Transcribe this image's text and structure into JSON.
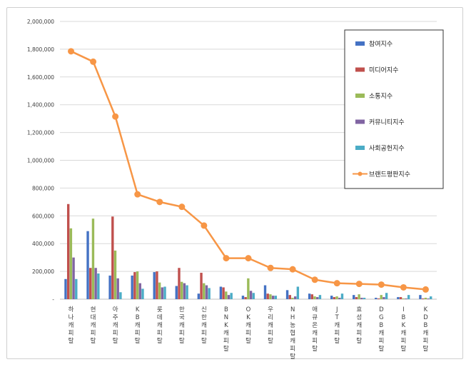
{
  "chart_data": {
    "type": "bar",
    "title": "",
    "xlabel": "",
    "ylabel": "",
    "ylim": [
      0,
      2000000
    ],
    "yticks": [
      0,
      200000,
      400000,
      600000,
      800000,
      1000000,
      1200000,
      1400000,
      1600000,
      1800000,
      2000000
    ],
    "ytick_labels": [
      "-",
      "200,000",
      "400,000",
      "600,000",
      "800,000",
      "1,000,000",
      "1,200,000",
      "1,400,000",
      "1,600,000",
      "1,800,000",
      "2,000,000"
    ],
    "categories": [
      "하나캐피탈",
      "현대캐피탈",
      "아주캐피탈",
      "KB캐피탈",
      "롯데캐피탈",
      "한국캐피탈",
      "신한캐피탈",
      "BNK캐피탈",
      "OK캐피탈",
      "우리캐피탈",
      "NH농협캐피탈",
      "애큐온캐피탈",
      "JT캐피탈",
      "효성캐피탈",
      "DGB캐피탈",
      "IBK캐피탈",
      "KDB캐피탈"
    ],
    "grid": true,
    "legend_position": "top-right",
    "series": [
      {
        "name": "참여지수",
        "kind": "bar",
        "color": "#4472C4",
        "values": [
          145000,
          490000,
          170000,
          170000,
          195000,
          95000,
          40000,
          90000,
          25000,
          100000,
          65000,
          40000,
          25000,
          30000,
          10000,
          15000,
          30000
        ]
      },
      {
        "name": "미디어지수",
        "kind": "bar",
        "color": "#C0504D",
        "values": [
          685000,
          225000,
          595000,
          195000,
          200000,
          225000,
          190000,
          85000,
          15000,
          40000,
          30000,
          35000,
          15000,
          15000,
          5000,
          15000,
          5000
        ]
      },
      {
        "name": "소통지수",
        "kind": "bar",
        "color": "#9BBB59",
        "values": [
          510000,
          580000,
          350000,
          200000,
          120000,
          125000,
          115000,
          55000,
          150000,
          35000,
          10000,
          20000,
          20000,
          35000,
          30000,
          5000,
          10000
        ]
      },
      {
        "name": "커뮤니티지수",
        "kind": "bar",
        "color": "#8064A2",
        "values": [
          300000,
          225000,
          150000,
          115000,
          85000,
          115000,
          100000,
          30000,
          60000,
          25000,
          20000,
          15000,
          10000,
          10000,
          15000,
          5000,
          5000
        ]
      },
      {
        "name": "사회공헌지수",
        "kind": "bar",
        "color": "#4BACC6",
        "values": [
          145000,
          185000,
          50000,
          75000,
          90000,
          100000,
          80000,
          45000,
          45000,
          25000,
          90000,
          30000,
          40000,
          10000,
          45000,
          30000,
          20000
        ]
      },
      {
        "name": "브랜드평판지수",
        "kind": "line",
        "color": "#F79646",
        "values": [
          1785000,
          1710000,
          1315000,
          755000,
          700000,
          665000,
          530000,
          295000,
          295000,
          225000,
          215000,
          140000,
          115000,
          110000,
          105000,
          85000,
          70000
        ]
      }
    ]
  }
}
